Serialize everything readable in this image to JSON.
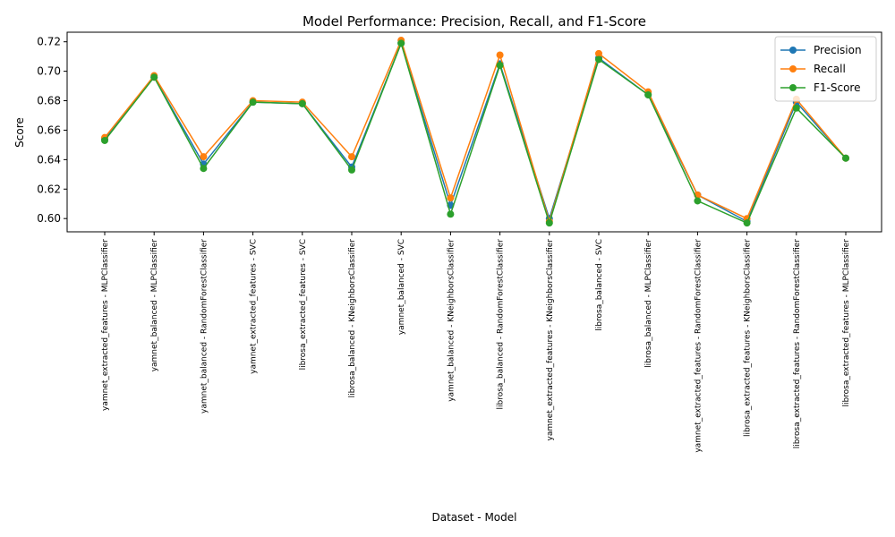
{
  "chart_data": {
    "type": "line",
    "title": "Model Performance: Precision, Recall, and F1-Score",
    "xlabel": "Dataset - Model",
    "ylabel": "Score",
    "ylim": [
      0.591,
      0.7265
    ],
    "yticks": [
      0.6,
      0.62,
      0.64,
      0.66,
      0.68,
      0.7,
      0.72
    ],
    "ytick_labels": [
      "0.60",
      "0.62",
      "0.64",
      "0.66",
      "0.68",
      "0.70",
      "0.72"
    ],
    "grid": false,
    "legend_position": "top-right",
    "categories": [
      "yamnet_extracted_features - MLPClassifier",
      "yamnet_balanced - MLPClassifier",
      "yamnet_balanced - RandomForestClassifier",
      "yamnet_extracted_features - SVC",
      "librosa_extracted_features - SVC",
      "librosa_balanced - KNeighborsClassifier",
      "yamnet_balanced - SVC",
      "yamnet_balanced - KNeighborsClassifier",
      "librosa_balanced - RandomForestClassifier",
      "yamnet_extracted_features - KNeighborsClassifier",
      "librosa_balanced - SVC",
      "librosa_balanced - MLPClassifier",
      "yamnet_extracted_features - RandomForestClassifier",
      "librosa_extracted_features - KNeighborsClassifier",
      "librosa_extracted_features - RandomForestClassifier",
      "librosa_extracted_features - MLPClassifier"
    ],
    "series": [
      {
        "name": "Precision",
        "color": "#1f77b4",
        "values": [
          0.654,
          0.696,
          0.637,
          0.679,
          0.678,
          0.635,
          0.719,
          0.609,
          0.705,
          0.6,
          0.709,
          0.684,
          0.616,
          0.598,
          0.679,
          0.641
        ]
      },
      {
        "name": "Recall",
        "color": "#ff7f0e",
        "values": [
          0.655,
          0.697,
          0.642,
          0.68,
          0.679,
          0.642,
          0.721,
          0.614,
          0.711,
          0.598,
          0.712,
          0.686,
          0.616,
          0.6,
          0.681,
          0.641
        ]
      },
      {
        "name": "F1-Score",
        "color": "#2ca02c",
        "values": [
          0.653,
          0.696,
          0.634,
          0.679,
          0.678,
          0.633,
          0.719,
          0.603,
          0.704,
          0.597,
          0.708,
          0.684,
          0.612,
          0.597,
          0.675,
          0.641
        ]
      }
    ]
  }
}
